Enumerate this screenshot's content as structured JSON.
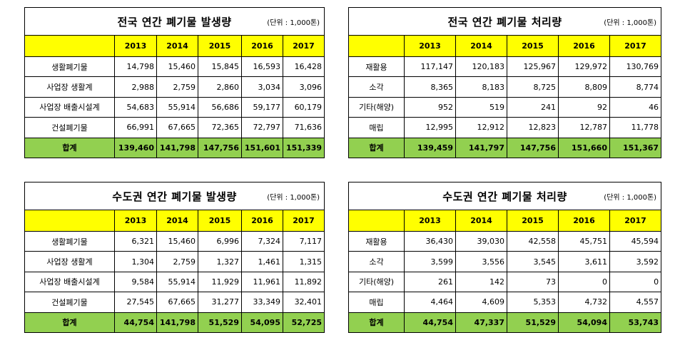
{
  "tables": [
    {
      "title": "전국 연간 폐기물 발생량",
      "unit": "(단위 : 1,000톤)",
      "years": [
        "2013",
        "2014",
        "2015",
        "2016",
        "2017"
      ],
      "rows": [
        {
          "label": "생활폐기물",
          "values": [
            "14,798",
            "15,460",
            "15,845",
            "16,593",
            "16,428"
          ]
        },
        {
          "label": "사업장 생활계",
          "values": [
            "2,988",
            "2,759",
            "2,860",
            "3,034",
            "3,096"
          ]
        },
        {
          "label": "사업장 배출시설계",
          "values": [
            "54,683",
            "55,914",
            "56,686",
            "59,177",
            "60,179"
          ]
        },
        {
          "label": "건설폐기물",
          "values": [
            "66,991",
            "67,665",
            "72,365",
            "72,797",
            "71,636"
          ]
        }
      ],
      "total": {
        "label": "합계",
        "values": [
          "139,460",
          "141,798",
          "147,756",
          "151,601",
          "151,339"
        ]
      }
    },
    {
      "title": "전국 연간 폐기물 처리량",
      "unit": "(단위 : 1,000톤)",
      "years": [
        "2013",
        "2014",
        "2015",
        "2016",
        "2017"
      ],
      "rows": [
        {
          "label": "재활용",
          "values": [
            "117,147",
            "120,183",
            "125,967",
            "129,972",
            "130,769"
          ]
        },
        {
          "label": "소각",
          "values": [
            "8,365",
            "8,183",
            "8,725",
            "8,809",
            "8,774"
          ]
        },
        {
          "label": "기타(해양)",
          "values": [
            "952",
            "519",
            "241",
            "92",
            "46"
          ]
        },
        {
          "label": "매립",
          "values": [
            "12,995",
            "12,912",
            "12,823",
            "12,787",
            "11,778"
          ]
        }
      ],
      "total": {
        "label": "합계",
        "values": [
          "139,459",
          "141,797",
          "147,756",
          "151,660",
          "151,367"
        ]
      }
    },
    {
      "title": "수도권 연간 폐기물 발생량",
      "unit": "(단위 : 1,000톤)",
      "years": [
        "2013",
        "2014",
        "2015",
        "2016",
        "2017"
      ],
      "rows": [
        {
          "label": "생활폐기물",
          "values": [
            "6,321",
            "15,460",
            "6,996",
            "7,324",
            "7,117"
          ]
        },
        {
          "label": "사업장 생활계",
          "values": [
            "1,304",
            "2,759",
            "1,327",
            "1,461",
            "1,315"
          ]
        },
        {
          "label": "사업장 배출시설계",
          "values": [
            "9,584",
            "55,914",
            "11,929",
            "11,961",
            "11,892"
          ]
        },
        {
          "label": "건설폐기물",
          "values": [
            "27,545",
            "67,665",
            "31,277",
            "33,349",
            "32,401"
          ]
        }
      ],
      "total": {
        "label": "합계",
        "values": [
          "44,754",
          "141,798",
          "51,529",
          "54,095",
          "52,725"
        ]
      }
    },
    {
      "title": "수도권 연간 폐기물 처리량",
      "unit": "(단위 : 1,000톤)",
      "years": [
        "2013",
        "2014",
        "2015",
        "2016",
        "2017"
      ],
      "rows": [
        {
          "label": "재활용",
          "values": [
            "36,430",
            "39,030",
            "42,558",
            "45,751",
            "45,594"
          ]
        },
        {
          "label": "소각",
          "values": [
            "3,599",
            "3,556",
            "3,545",
            "3,611",
            "3,592"
          ]
        },
        {
          "label": "기타(해양)",
          "values": [
            "261",
            "142",
            "73",
            "0",
            "0"
          ]
        },
        {
          "label": "매립",
          "values": [
            "4,464",
            "4,609",
            "5,353",
            "4,732",
            "4,557"
          ]
        }
      ],
      "total": {
        "label": "합계",
        "values": [
          "44,754",
          "47,337",
          "51,529",
          "54,094",
          "53,743"
        ]
      }
    }
  ],
  "colors": {
    "header_bg": "#ffff00",
    "total_bg": "#92d050"
  }
}
